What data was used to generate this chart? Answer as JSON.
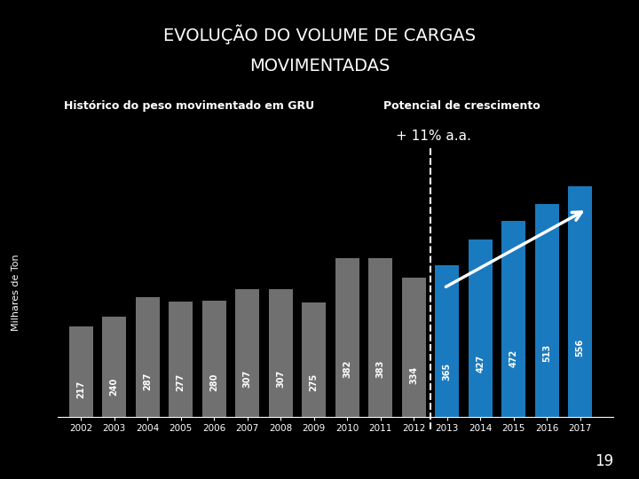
{
  "title_line1": "EVOLUÇÃO DO VOLUME DE CARGAS",
  "title_line2": "MOVIMENTADAS",
  "subtitle_hist": "Histórico do peso movimentado em GRU",
  "subtitle_pot": "Potencial de crescimento",
  "growth_label": "+ 11% a.a.",
  "ylabel": "Milhares de Ton",
  "years": [
    2002,
    2003,
    2004,
    2005,
    2006,
    2007,
    2008,
    2009,
    2010,
    2011,
    2012,
    2013,
    2014,
    2015,
    2016,
    2017
  ],
  "values": [
    217,
    240,
    287,
    277,
    280,
    307,
    307,
    275,
    382,
    383,
    334,
    365,
    427,
    472,
    513,
    556
  ],
  "bar_colors": [
    "#707070",
    "#707070",
    "#707070",
    "#707070",
    "#707070",
    "#707070",
    "#707070",
    "#707070",
    "#707070",
    "#707070",
    "#707070",
    "#1a7abf",
    "#1a7abf",
    "#1a7abf",
    "#1a7abf",
    "#1a7abf"
  ],
  "background_color": "#000000",
  "text_color": "#ffffff",
  "divider_year": 2012.5,
  "page_number": "19",
  "title_fontsize": 14,
  "bar_label_fontsize": 7,
  "subtitle_fontsize": 9,
  "growth_fontsize": 11,
  "xlabel_fontsize": 7.5,
  "ylabel_fontsize": 8
}
